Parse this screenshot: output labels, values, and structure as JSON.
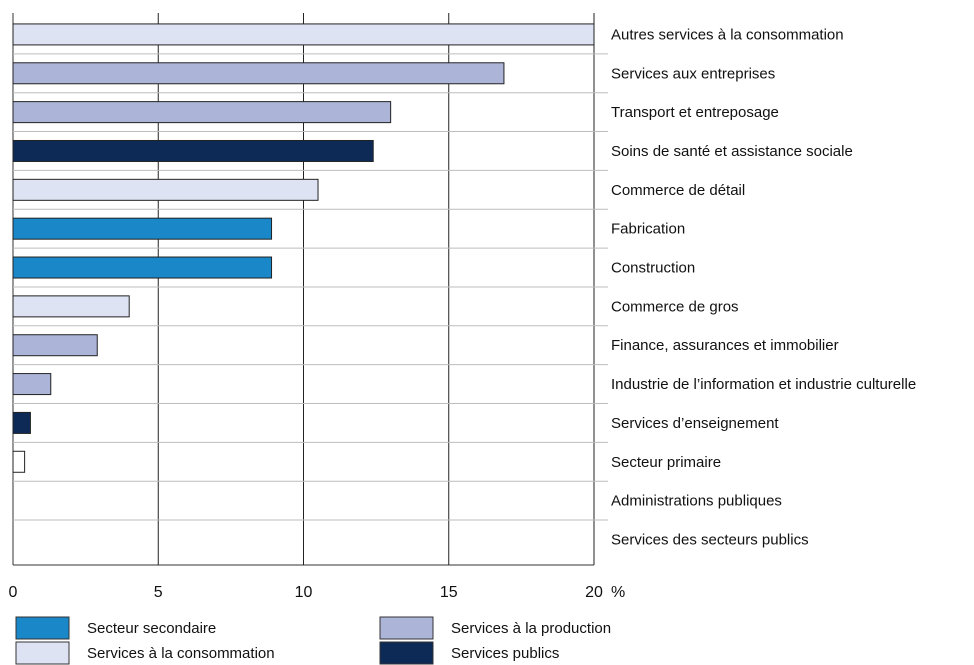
{
  "chart_data": {
    "type": "bar",
    "orientation": "horizontal",
    "categories": [
      "Autres services à la consommation",
      "Services aux entreprises",
      "Transport et entreposage",
      "Soins de santé et assistance sociale",
      "Commerce de détail",
      "Fabrication",
      "Construction",
      "Commerce de gros",
      "Finance, assurances et immobilier",
      "Industrie de l’information et industrie culturelle",
      "Services d’enseignement",
      "Secteur primaire",
      "Administrations publiques",
      "Services des secteurs publics"
    ],
    "values": [
      20.0,
      16.9,
      13.0,
      12.4,
      10.5,
      8.9,
      8.9,
      4.0,
      2.9,
      1.3,
      0.6,
      0.4,
      0,
      0
    ],
    "groups": [
      "Services à la consommation",
      "Services à la production",
      "Services à la production",
      "Services publics",
      "Services à la consommation",
      "Secteur secondaire",
      "Secteur secondaire",
      "Services à la consommation",
      "Services à la production",
      "Services à la production",
      "Services publics",
      "",
      "",
      ""
    ],
    "xlim": [
      0,
      20
    ],
    "xticks": [
      "0",
      "5",
      "10",
      "15",
      "20"
    ],
    "unit": "%",
    "grid": "vertical at ticks",
    "legend": {
      "placement": "bottom",
      "entries": [
        {
          "label": "Secteur secondaire",
          "color": "#1a87c9"
        },
        {
          "label": "Services à la production",
          "color": "#acb4d8"
        },
        {
          "label": "Services à la consommation",
          "color": "#dde3f3"
        },
        {
          "label": "Services publics",
          "color": "#0d2a57"
        }
      ]
    },
    "colors": {
      "Secteur secondaire": "#1a87c9",
      "Services à la production": "#acb4d8",
      "Services à la consommation": "#dde3f3",
      "Services publics": "#0d2a57",
      "none": "#ffffff"
    }
  }
}
